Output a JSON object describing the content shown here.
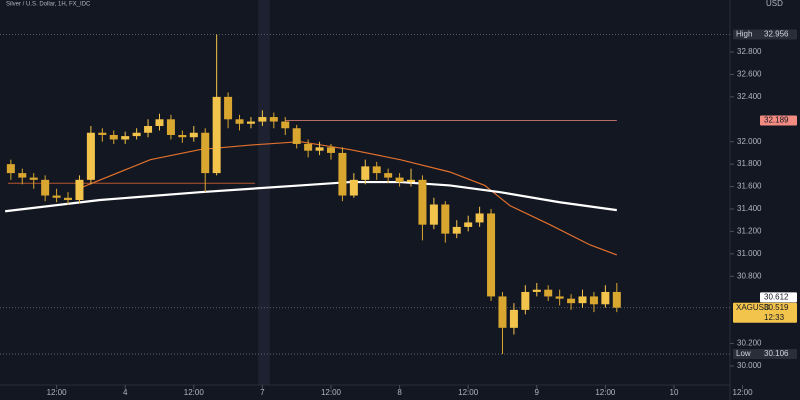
{
  "title": "Silver / U.S. Dollar, 1H, FX_IDC",
  "currency": "USD",
  "chart_data": {
    "type": "candlestick",
    "x": [
      -20,
      -18,
      -16,
      -14,
      -12,
      -10,
      -8,
      -6,
      -4,
      -2,
      0,
      2,
      4,
      6,
      8,
      10,
      12,
      14,
      16,
      18,
      20,
      22,
      24,
      26,
      28,
      30,
      32,
      34,
      36,
      38,
      40,
      42,
      44,
      46,
      48,
      50,
      52,
      54,
      56,
      58,
      60,
      62,
      64,
      66,
      68,
      70,
      72,
      74,
      76,
      78,
      80,
      82,
      84,
      86
    ],
    "open": [
      31.8,
      31.72,
      31.68,
      31.66,
      31.52,
      31.5,
      31.48,
      31.66,
      32.08,
      32.06,
      32.02,
      32.05,
      32.08,
      32.14,
      32.2,
      32.06,
      32.04,
      32.08,
      31.72,
      32.4,
      32.2,
      32.16,
      32.18,
      32.22,
      32.18,
      32.12,
      31.98,
      31.92,
      31.95,
      31.9,
      31.52,
      31.66,
      31.78,
      31.72,
      31.68,
      31.64,
      31.66,
      31.26,
      31.44,
      31.18,
      31.24,
      31.28,
      31.36,
      30.62,
      30.34,
      30.5,
      30.66,
      30.68,
      30.62,
      30.6,
      30.56,
      30.62,
      30.55,
      30.66
    ],
    "high": [
      31.84,
      31.76,
      31.72,
      31.7,
      31.58,
      31.55,
      31.7,
      32.14,
      32.12,
      32.1,
      32.09,
      32.12,
      32.2,
      32.25,
      32.24,
      32.1,
      32.14,
      32.12,
      32.956,
      32.44,
      32.24,
      32.22,
      32.28,
      32.26,
      32.22,
      32.15,
      32.02,
      32.0,
      31.98,
      31.95,
      31.72,
      31.84,
      31.82,
      31.76,
      31.72,
      31.76,
      31.7,
      31.5,
      31.47,
      31.3,
      31.34,
      31.42,
      31.4,
      30.66,
      30.56,
      30.72,
      30.74,
      30.72,
      30.68,
      30.64,
      30.68,
      30.66,
      30.72,
      30.74
    ],
    "low": [
      31.66,
      31.62,
      31.58,
      31.47,
      31.46,
      31.44,
      31.45,
      31.62,
      32.0,
      31.98,
      31.98,
      32.02,
      32.04,
      32.1,
      32.02,
      31.99,
      32.0,
      31.55,
      31.7,
      32.12,
      32.1,
      32.12,
      32.14,
      32.12,
      32.06,
      31.94,
      31.86,
      31.88,
      31.84,
      31.47,
      31.5,
      31.62,
      31.66,
      31.63,
      31.6,
      31.6,
      31.12,
      31.22,
      31.1,
      31.14,
      31.2,
      31.24,
      30.58,
      30.106,
      30.28,
      30.46,
      30.62,
      30.58,
      30.54,
      30.5,
      30.52,
      30.48,
      30.52,
      30.48
    ],
    "close": [
      31.72,
      31.68,
      31.66,
      31.52,
      31.5,
      31.48,
      31.66,
      32.08,
      32.06,
      32.02,
      32.05,
      32.08,
      32.14,
      32.2,
      32.06,
      32.04,
      32.08,
      31.72,
      32.4,
      32.2,
      32.16,
      32.18,
      32.22,
      32.18,
      32.12,
      31.98,
      31.92,
      31.95,
      31.9,
      31.52,
      31.66,
      31.78,
      31.72,
      31.68,
      31.64,
      31.66,
      31.26,
      31.44,
      31.18,
      31.24,
      31.28,
      31.36,
      30.62,
      30.34,
      30.5,
      30.66,
      30.68,
      30.62,
      30.6,
      30.56,
      30.62,
      30.55,
      30.66,
      30.52
    ],
    "up_color": "#f3c44c",
    "down_color": "#d9a630",
    "xlim": [
      -21.9,
      105.8
    ],
    "xticks": [
      {
        "value": -12,
        "label": "12:00"
      },
      {
        "value": 0,
        "label": "4"
      },
      {
        "value": 12,
        "label": "12:00"
      },
      {
        "value": 24,
        "label": "7"
      },
      {
        "value": 36,
        "label": "12:00"
      },
      {
        "value": 48,
        "label": "8"
      },
      {
        "value": 60,
        "label": "12:00"
      },
      {
        "value": 72,
        "label": "9"
      },
      {
        "value": 84,
        "label": "12:00"
      },
      {
        "value": 96,
        "label": "10"
      },
      {
        "value": 108,
        "label": "12:00"
      }
    ],
    "ylim": [
      29.83,
      33.264
    ],
    "yticks": [
      {
        "value": 30,
        "label": "30.000"
      },
      {
        "value": 30.2,
        "label": "30.200"
      },
      {
        "value": 30.8,
        "label": "30.800"
      },
      {
        "value": 31,
        "label": "31.000"
      },
      {
        "value": 31.2,
        "label": "31.200"
      },
      {
        "value": 31.4,
        "label": "31.400"
      },
      {
        "value": 31.6,
        "label": "31.600"
      },
      {
        "value": 31.8,
        "label": "31.800"
      },
      {
        "value": 32,
        "label": "32.000"
      },
      {
        "value": 32.4,
        "label": "32.400"
      },
      {
        "value": 32.6,
        "label": "32.600"
      },
      {
        "value": 32.8,
        "label": "32.800"
      }
    ],
    "lines": [
      {
        "color": "#e0702c",
        "x": [
          -8.7,
          4.4,
          13.1,
          21.9,
          30.6,
          39.3,
          48.1,
          56.8,
          62.9,
          67.3,
          74.3,
          81.3,
          86
        ],
        "values": [
          31.57,
          31.84,
          31.93,
          31.97,
          32.0,
          31.93,
          31.84,
          31.73,
          31.61,
          31.43,
          31.26,
          31.08,
          30.99
        ]
      },
      {
        "color": "#ffffff",
        "x": [
          -21,
          -4.4,
          13.1,
          30.6,
          39.3,
          48.1,
          56.8,
          65.6,
          76,
          86
        ],
        "values": [
          31.38,
          31.48,
          31.55,
          31.61,
          31.64,
          31.64,
          31.61,
          31.55,
          31.46,
          31.39
        ]
      }
    ],
    "levels": [
      {
        "value": 31.63,
        "color": "#b5552d",
        "x": [
          -20.5,
          22.7
        ]
      }
    ],
    "markers": [
      {
        "name": "High",
        "value": 32.956,
        "bg": "#2a2e39",
        "fg": "#d1d4dc",
        "line": "dotted"
      },
      {
        "value": 32.189,
        "bg": "#f28b82",
        "fg": "#131722",
        "line": "solid",
        "x": [
          28,
          86
        ]
      },
      {
        "value": 30.612,
        "bg": "#ffffff",
        "fg": "#131722"
      },
      {
        "name": "XAGUSD",
        "value": 30.519,
        "countdown": "12:33",
        "bg": "#f3c44c",
        "fg": "#131722",
        "line": "dotted"
      },
      {
        "name": "Low",
        "value": 30.106,
        "bg": "#2a2e39",
        "fg": "#d1d4dc",
        "line": "dotted"
      }
    ]
  }
}
